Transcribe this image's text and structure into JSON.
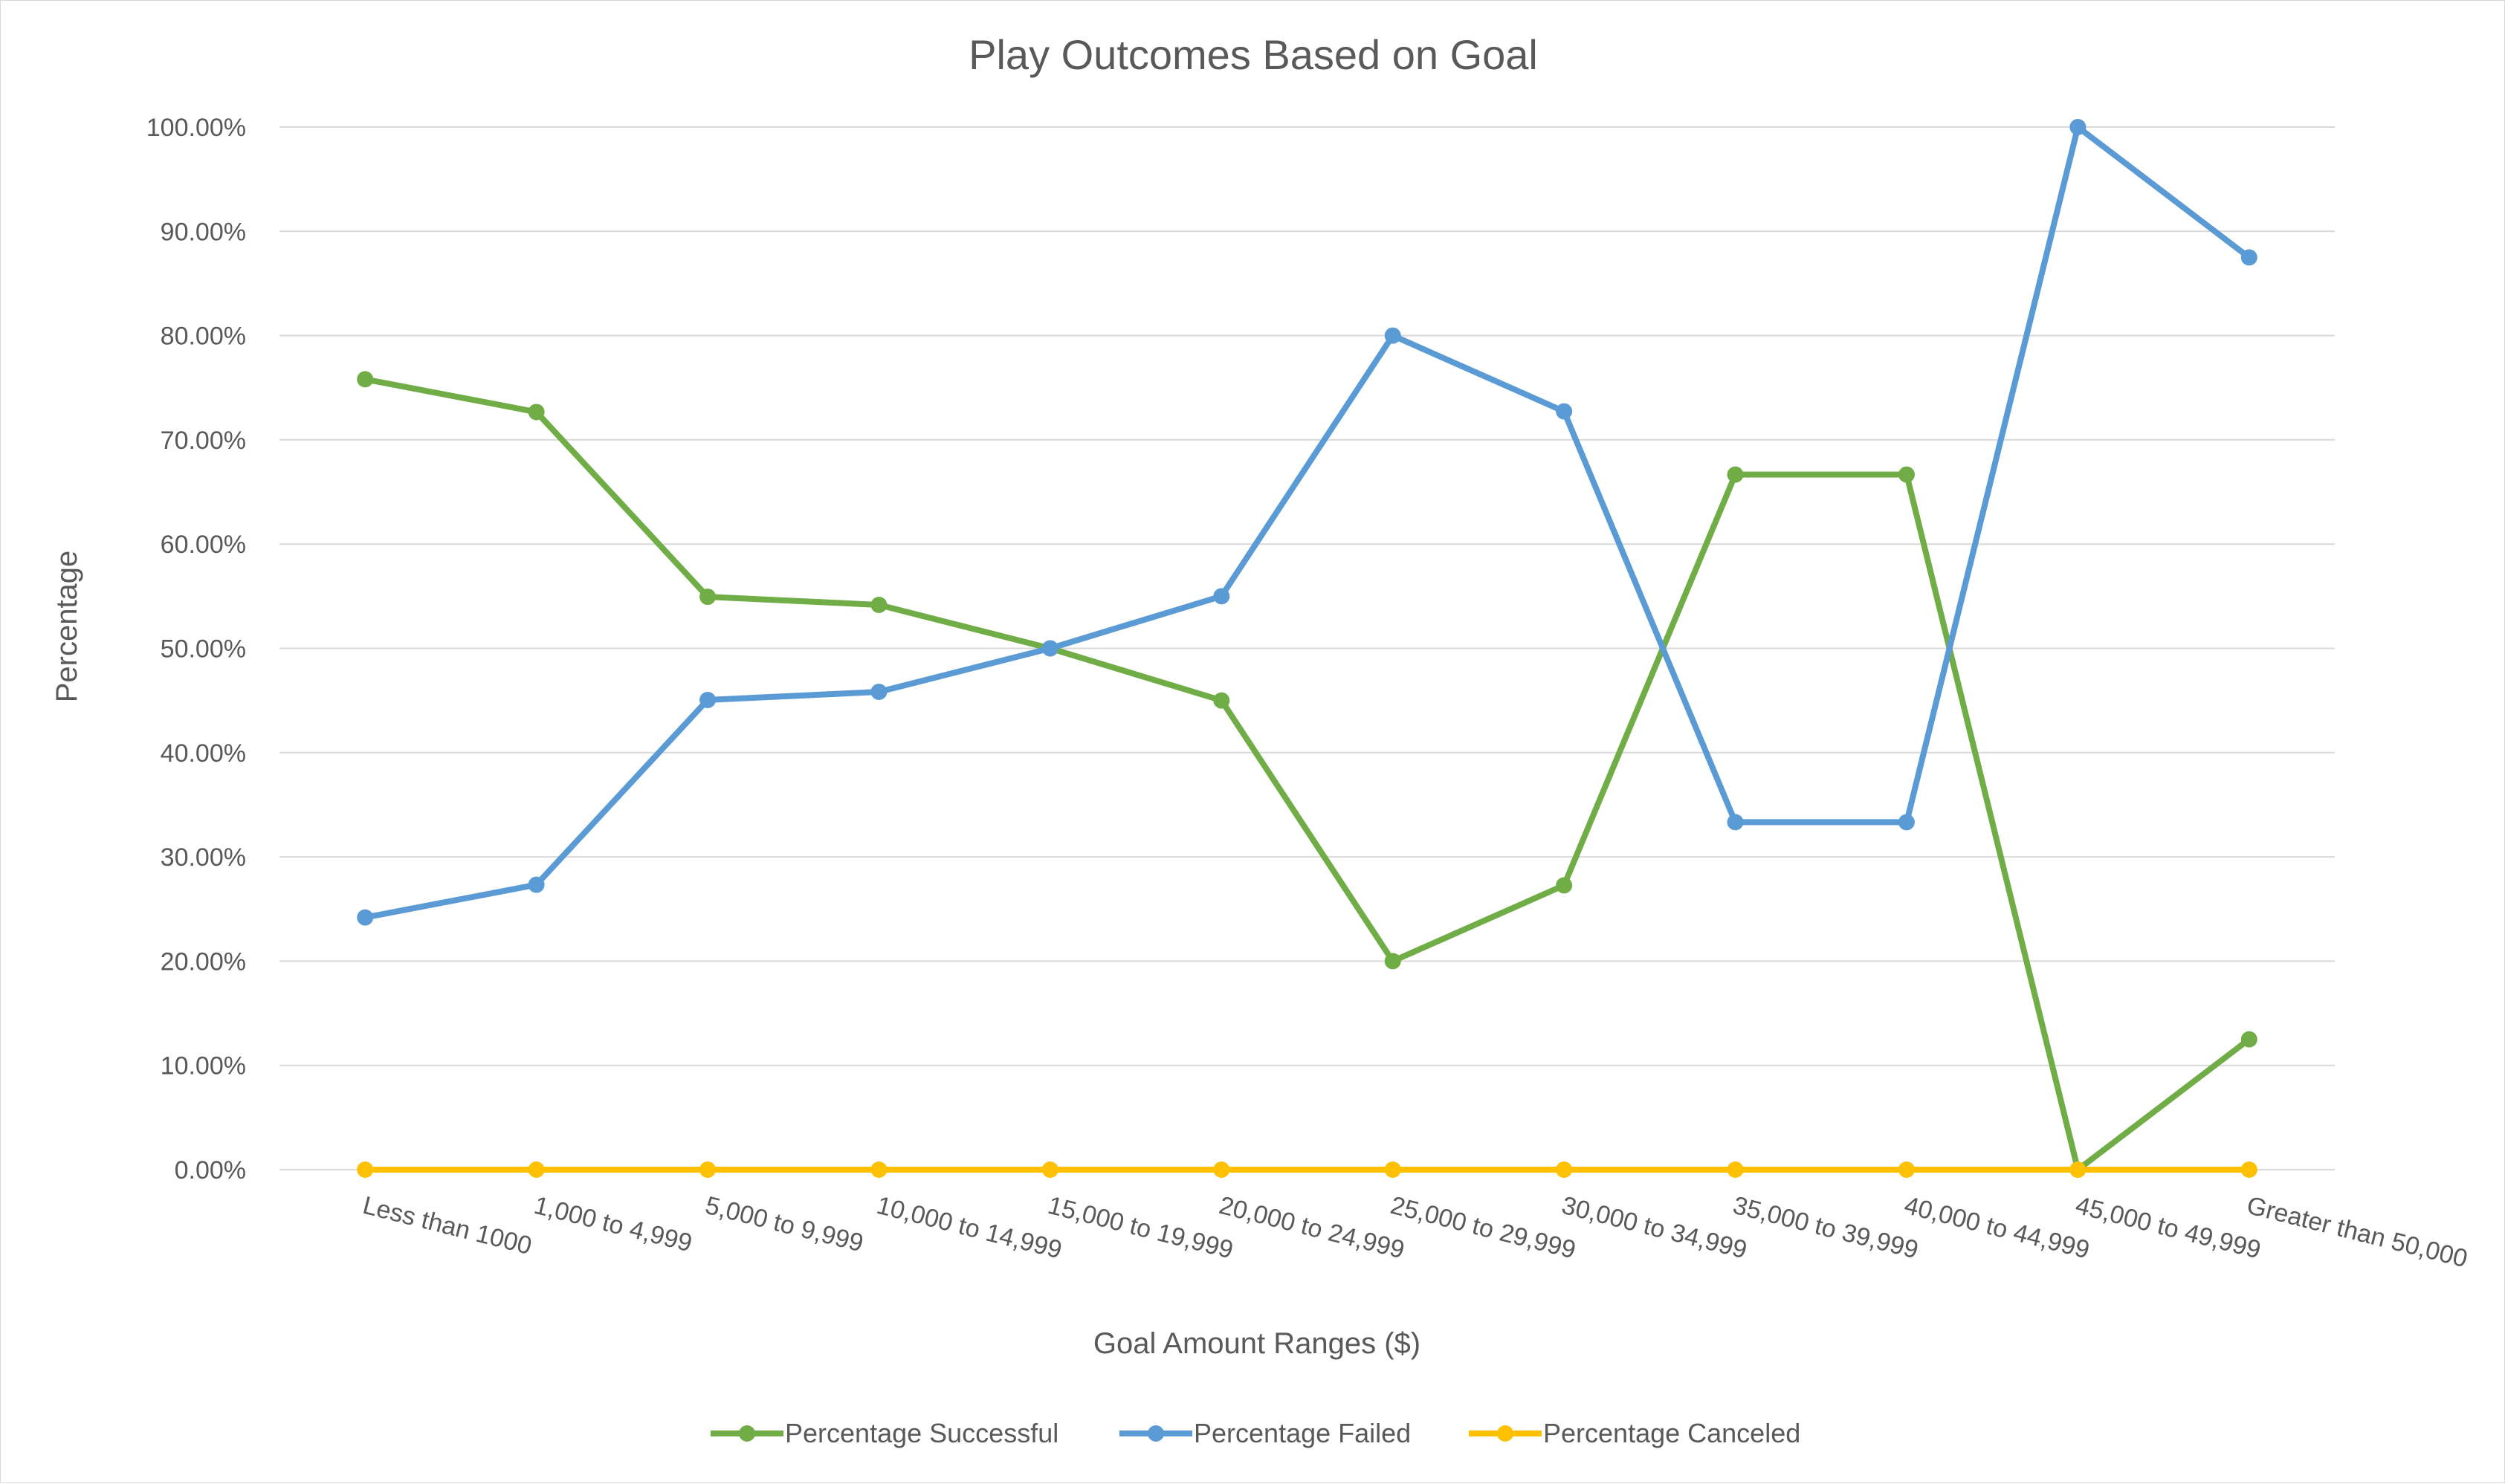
{
  "chart_data": {
    "type": "line",
    "title": "Play Outcomes Based on Goal",
    "xlabel": "Goal Amount Ranges ($)",
    "ylabel": "Percentage",
    "ylim": [
      0,
      100
    ],
    "y_ticks": [
      "0.00%",
      "10.00%",
      "20.00%",
      "30.00%",
      "40.00%",
      "50.00%",
      "60.00%",
      "70.00%",
      "80.00%",
      "90.00%",
      "100.00%"
    ],
    "y_tick_values": [
      0,
      10,
      20,
      30,
      40,
      50,
      60,
      70,
      80,
      90,
      100
    ],
    "categories": [
      "Less than 1000",
      "1,000 to 4,999",
      "5,000 to 9,999",
      "10,000 to 14,999",
      "15,000 to 19,999",
      "20,000 to 24,999",
      "25,000 to 29,999",
      "30,000 to 34,999",
      "35,000 to 39,999",
      "40,000 to 44,999",
      "45,000 to 49,999",
      "Greater than 50,000"
    ],
    "series": [
      {
        "name": "Percentage Successful",
        "color": "#70ad47",
        "values": [
          75.81,
          72.67,
          54.95,
          54.17,
          50.0,
          45.0,
          20.0,
          27.27,
          66.67,
          66.67,
          0.0,
          12.5
        ]
      },
      {
        "name": "Percentage Failed",
        "color": "#5b9bd5",
        "values": [
          24.19,
          27.33,
          45.05,
          45.83,
          50.0,
          55.0,
          80.0,
          72.73,
          33.33,
          33.33,
          100.0,
          87.5
        ]
      },
      {
        "name": "Percentage Canceled",
        "color": "#ffc000",
        "values": [
          0,
          0,
          0,
          0,
          0,
          0,
          0,
          0,
          0,
          0,
          0,
          0
        ]
      }
    ],
    "grid": true,
    "legend_position": "bottom",
    "gridline_color": "#d9d9d9",
    "text_color": "#595959"
  }
}
